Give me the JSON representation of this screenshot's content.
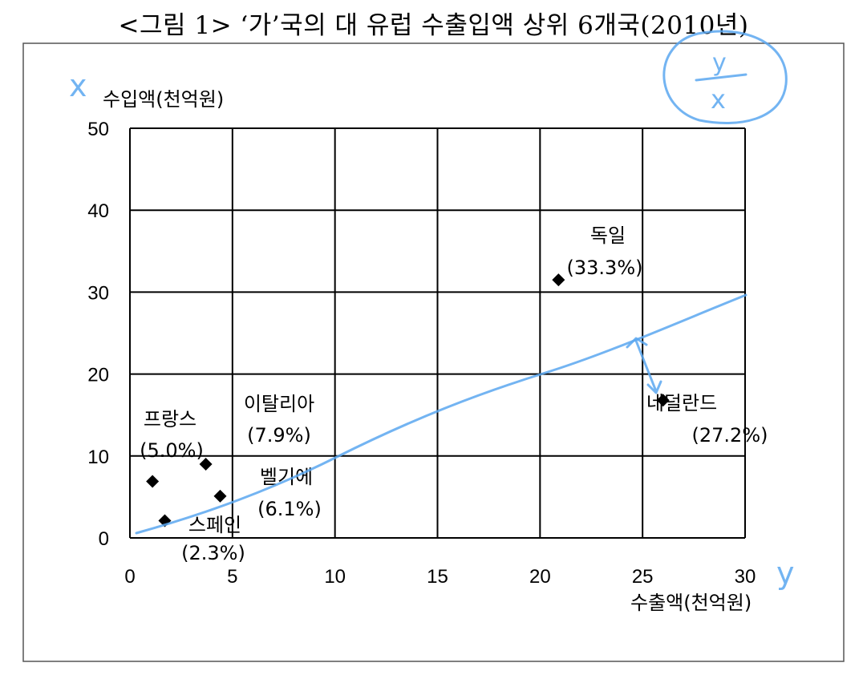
{
  "chart_data": {
    "type": "scatter",
    "title": "<그림 1> ‘가’국의 대 유럽 수출입액 상위 6개국(2010년)",
    "xlabel": "수출액(천억원)",
    "ylabel": "수입액(천억원)",
    "xlim": [
      0,
      30
    ],
    "ylim": [
      0,
      50
    ],
    "x_ticks": [
      0,
      5,
      10,
      15,
      20,
      25,
      30
    ],
    "y_ticks": [
      0,
      10,
      20,
      30,
      40,
      50
    ],
    "grid": true,
    "marker": "diamond",
    "points": [
      {
        "name": "독일",
        "share": "(33.3%)",
        "x": 20.9,
        "y": 31.5
      },
      {
        "name": "네덜란드",
        "share": "(27.2%)",
        "x": 26.0,
        "y": 16.8
      },
      {
        "name": "이탈리아",
        "share": "(7.9%)",
        "x": 3.7,
        "y": 9.0
      },
      {
        "name": "프랑스",
        "share": "(5.0%)",
        "x": 1.1,
        "y": 6.9
      },
      {
        "name": "벨기에",
        "share": "(6.1%)",
        "x": 4.4,
        "y": 5.1
      },
      {
        "name": "스페인",
        "share": "(2.3%)",
        "x": 1.7,
        "y": 2.1
      }
    ]
  },
  "annotations": {
    "handwritten_x": "x",
    "handwritten_y": "y",
    "circled_note": "y/x"
  }
}
